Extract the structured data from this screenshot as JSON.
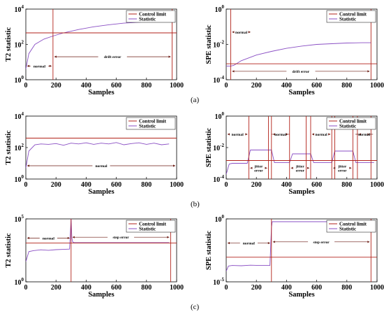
{
  "panel_labels": [
    "(a)",
    "(b)",
    "(c)"
  ],
  "legend": {
    "control": "Control limit",
    "statistic": "Statistic"
  },
  "colors": {
    "control": "#b2221a",
    "statistic": "#8a4fc4",
    "accent": "#c2462c",
    "text": "#000000"
  },
  "chart_data": [
    {
      "type": "line",
      "title": "",
      "xlabel": "Samples",
      "ylabel": "T2 statistic",
      "xlim": [
        0,
        1000
      ],
      "ylim": [
        1,
        10000
      ],
      "yscale": "log",
      "xticks": [
        "0",
        "200",
        "400",
        "600",
        "800",
        "1000"
      ],
      "yticks": [
        {
          "base": "10",
          "exp": "0",
          "value": 1
        },
        {
          "base": "10",
          "exp": "2",
          "value": 100
        },
        {
          "base": "10",
          "exp": "4",
          "value": 10000
        }
      ],
      "legend_position": "top-right",
      "grid": false,
      "series": [
        {
          "name": "Control limit",
          "x": [
            0,
            1000
          ],
          "y": [
            450,
            450
          ]
        },
        {
          "name": "Statistic",
          "x": [
            0,
            20,
            60,
            120,
            180,
            250,
            350,
            450,
            550,
            650,
            750,
            850,
            950
          ],
          "y": [
            4,
            30,
            100,
            200,
            300,
            450,
            700,
            1000,
            1300,
            1600,
            1800,
            2000,
            2000
          ]
        }
      ],
      "vlines": [
        180,
        970
      ],
      "annotations": [
        {
          "text": "normal",
          "x": [
            0,
            180
          ],
          "y": 6
        },
        {
          "text": "drift error",
          "x": [
            180,
            970
          ],
          "y": 20
        }
      ]
    },
    {
      "type": "line",
      "title": "",
      "xlabel": "Samples",
      "ylabel": "SPE statistic",
      "xlim": [
        0,
        1000
      ],
      "ylim": [
        0.0001,
        1
      ],
      "yscale": "log",
      "xticks": [
        "0",
        "200",
        "400",
        "600",
        "800",
        "1000"
      ],
      "yticks": [
        {
          "base": "10",
          "exp": "-4",
          "value": 0.0001
        },
        {
          "base": "10",
          "exp": "-2",
          "value": 0.01
        },
        {
          "base": "10",
          "exp": "0",
          "value": 1
        }
      ],
      "legend_position": "top-right",
      "grid": false,
      "series": [
        {
          "name": "Control limit",
          "x": [
            0,
            1000
          ],
          "y": [
            0.0008,
            0.0008
          ]
        },
        {
          "name": "Statistic",
          "x": [
            0,
            30,
            50,
            100,
            200,
            300,
            400,
            500,
            600,
            700,
            800,
            900,
            960
          ],
          "y": [
            0.0006,
            0.0006,
            0.00065,
            0.0012,
            0.0025,
            0.004,
            0.006,
            0.008,
            0.01,
            0.011,
            0.012,
            0.0125,
            0.0125
          ]
        }
      ],
      "vlines": [
        30,
        960
      ],
      "annotations": [
        {
          "text": "normal",
          "x": [
            30,
            170
          ],
          "y": 0.05
        },
        {
          "text": "drift error",
          "x": [
            30,
            960
          ],
          "y": 0.0003
        }
      ]
    },
    {
      "type": "line",
      "title": "",
      "xlabel": "Samples",
      "ylabel": "T2 statistic",
      "xlim": [
        0,
        1000
      ],
      "ylim": [
        1,
        10000
      ],
      "yscale": "log",
      "xticks": [
        "0",
        "200",
        "400",
        "600",
        "800",
        "1000"
      ],
      "yticks": [
        {
          "base": "10",
          "exp": "0",
          "value": 1
        },
        {
          "base": "10",
          "exp": "2",
          "value": 100
        },
        {
          "base": "10",
          "exp": "4",
          "value": 10000
        }
      ],
      "legend_position": "top-right",
      "grid": false,
      "series": [
        {
          "name": "Control limit",
          "x": [
            0,
            1000
          ],
          "y": [
            400,
            400
          ]
        },
        {
          "name": "Statistic",
          "x": [
            0,
            20,
            60,
            100,
            150,
            200,
            250,
            300,
            350,
            400,
            450,
            500,
            550,
            600,
            650,
            700,
            750,
            800,
            850,
            900,
            950
          ],
          "y": [
            5,
            60,
            150,
            170,
            160,
            180,
            140,
            190,
            170,
            200,
            160,
            190,
            170,
            210,
            150,
            180,
            200,
            160,
            190,
            150,
            170
          ]
        }
      ],
      "vlines": [],
      "annotations": [
        {
          "text": "normal",
          "x": [
            0,
            1000
          ],
          "y": 7
        }
      ]
    },
    {
      "type": "line",
      "title": "",
      "xlabel": "Samples",
      "ylabel": "SPE statistic",
      "xlim": [
        0,
        1000
      ],
      "ylim": [
        0.0001,
        1
      ],
      "yscale": "log",
      "xticks": [
        "0",
        "200",
        "400",
        "600",
        "800",
        "1000"
      ],
      "yticks": [
        {
          "base": "10",
          "exp": "-4",
          "value": 0.0001
        },
        {
          "base": "10",
          "exp": "-2",
          "value": 0.01
        },
        {
          "base": "10",
          "exp": "0",
          "value": 1
        }
      ],
      "legend_position": "top-right",
      "grid": false,
      "series": [
        {
          "name": "Control limit",
          "x": [
            0,
            1000
          ],
          "y": [
            0.0015,
            0.0015
          ]
        },
        {
          "name": "Statistic",
          "x": [
            0,
            20,
            40,
            140,
            160,
            300,
            320,
            420,
            440,
            560,
            580,
            700,
            720,
            840,
            860,
            980
          ],
          "y": [
            0.0002,
            0.0009,
            0.001,
            0.001,
            0.007,
            0.007,
            0.0011,
            0.0011,
            0.004,
            0.004,
            0.0011,
            0.0011,
            0.006,
            0.006,
            0.0011,
            0.0011
          ]
        }
      ],
      "vlines": [
        150,
        280,
        300,
        420,
        530,
        560,
        700,
        720,
        840,
        870,
        960
      ],
      "annotations": [
        {
          "text": "normal",
          "x": [
            0,
            150
          ],
          "y": 0.07
        },
        {
          "text": "jitter",
          "text2": "error",
          "x": [
            150,
            280
          ],
          "y": 0.0005
        },
        {
          "text": "normal",
          "x": [
            300,
            420
          ],
          "y": 0.07
        },
        {
          "text": "jitter",
          "text2": "error",
          "x": [
            420,
            560
          ],
          "y": 0.0005
        },
        {
          "text": "normal",
          "x": [
            560,
            700
          ],
          "y": 0.07
        },
        {
          "text": "jitter",
          "text2": "error",
          "x": [
            700,
            840
          ],
          "y": 0.0005
        },
        {
          "text": "normal",
          "x": [
            870,
            960
          ],
          "y": 0.07
        }
      ]
    },
    {
      "type": "line",
      "title": "",
      "xlabel": "Samples",
      "ylabel": "T2 statistic",
      "xlim": [
        0,
        1000
      ],
      "ylim": [
        1,
        100000
      ],
      "yscale": "log",
      "xticks": [
        "0",
        "200",
        "400",
        "600",
        "800",
        "1000"
      ],
      "yticks": [
        {
          "base": "10",
          "exp": "0",
          "value": 1
        },
        {
          "base": "10",
          "exp": "5",
          "value": 100000
        }
      ],
      "legend_position": "top-right",
      "grid": false,
      "series": [
        {
          "name": "Control limit",
          "x": [
            0,
            1000
          ],
          "y": [
            1200,
            1200
          ]
        },
        {
          "name": "Statistic",
          "x": [
            0,
            20,
            50,
            100,
            150,
            200,
            250,
            290,
            300,
            305,
            310,
            320,
            400,
            500,
            600,
            700,
            800,
            900,
            950
          ],
          "y": [
            40,
            250,
            300,
            350,
            320,
            360,
            380,
            400,
            100000,
            3000,
            1500,
            1300,
            1300,
            1300,
            1300,
            1300,
            1300,
            1300,
            1300
          ]
        }
      ],
      "vlines": [
        300,
        960
      ],
      "annotations": [
        {
          "text": "normal",
          "x": [
            0,
            300
          ],
          "y": 3000
        },
        {
          "text": "step error",
          "x": [
            300,
            960
          ],
          "y": 3500
        }
      ]
    },
    {
      "type": "line",
      "title": "",
      "xlabel": "Samples",
      "ylabel": "SPE statistic",
      "xlim": [
        0,
        1000
      ],
      "ylim": [
        1e-05,
        1
      ],
      "yscale": "log",
      "xticks": [
        "0",
        "200",
        "400",
        "600",
        "800",
        "1000"
      ],
      "yticks": [
        {
          "base": "10",
          "exp": "-5",
          "value": 1e-05
        },
        {
          "base": "10",
          "exp": "0",
          "value": 1
        }
      ],
      "legend_position": "top-right",
      "grid": false,
      "series": [
        {
          "name": "Control limit",
          "x": [
            0,
            1000
          ],
          "y": [
            0.0009,
            0.0009
          ]
        },
        {
          "name": "Statistic",
          "x": [
            0,
            15,
            40,
            100,
            160,
            220,
            290,
            300,
            305,
            400,
            500,
            600,
            700,
            800,
            900,
            960
          ],
          "y": [
            7e-05,
            0.00018,
            0.0002,
            0.00019,
            0.00021,
            0.0002,
            0.0002,
            0.2,
            0.6,
            0.6,
            0.6,
            0.6,
            0.6,
            0.6,
            0.6,
            0.6
          ]
        }
      ],
      "vlines": [
        300,
        960
      ],
      "annotations": [
        {
          "text": "normal",
          "x": [
            0,
            300
          ],
          "y": 0.012
        },
        {
          "text": "step error",
          "x": [
            300,
            960
          ],
          "y": 0.015
        }
      ]
    }
  ]
}
